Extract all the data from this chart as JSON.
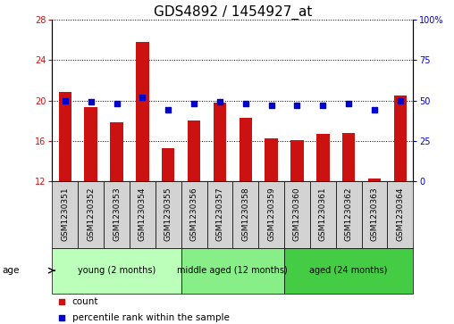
{
  "title": "GDS4892 / 1454927_at",
  "samples": [
    "GSM1230351",
    "GSM1230352",
    "GSM1230353",
    "GSM1230354",
    "GSM1230355",
    "GSM1230356",
    "GSM1230357",
    "GSM1230358",
    "GSM1230359",
    "GSM1230360",
    "GSM1230361",
    "GSM1230362",
    "GSM1230363",
    "GSM1230364"
  ],
  "counts": [
    20.8,
    19.3,
    17.8,
    25.8,
    15.3,
    18.0,
    19.8,
    18.3,
    16.3,
    16.1,
    16.7,
    16.8,
    12.3,
    20.5
  ],
  "percentiles": [
    50,
    49,
    48,
    52,
    44,
    48,
    49,
    48,
    47,
    47,
    47,
    48,
    44,
    50
  ],
  "ylim_left": [
    12,
    28
  ],
  "ylim_right": [
    0,
    100
  ],
  "yticks_left": [
    12,
    16,
    20,
    24,
    28
  ],
  "yticks_right": [
    0,
    25,
    50,
    75,
    100
  ],
  "bar_color": "#cc1111",
  "dot_color": "#0000cc",
  "groups": [
    {
      "label": "young (2 months)",
      "start": 0,
      "end": 5,
      "color": "#bbffbb"
    },
    {
      "label": "middle aged (12 months)",
      "start": 5,
      "end": 9,
      "color": "#88ee88"
    },
    {
      "label": "aged (24 months)",
      "start": 9,
      "end": 14,
      "color": "#44cc44"
    }
  ],
  "title_fontsize": 11,
  "tick_fontsize": 7,
  "bar_width": 0.5
}
